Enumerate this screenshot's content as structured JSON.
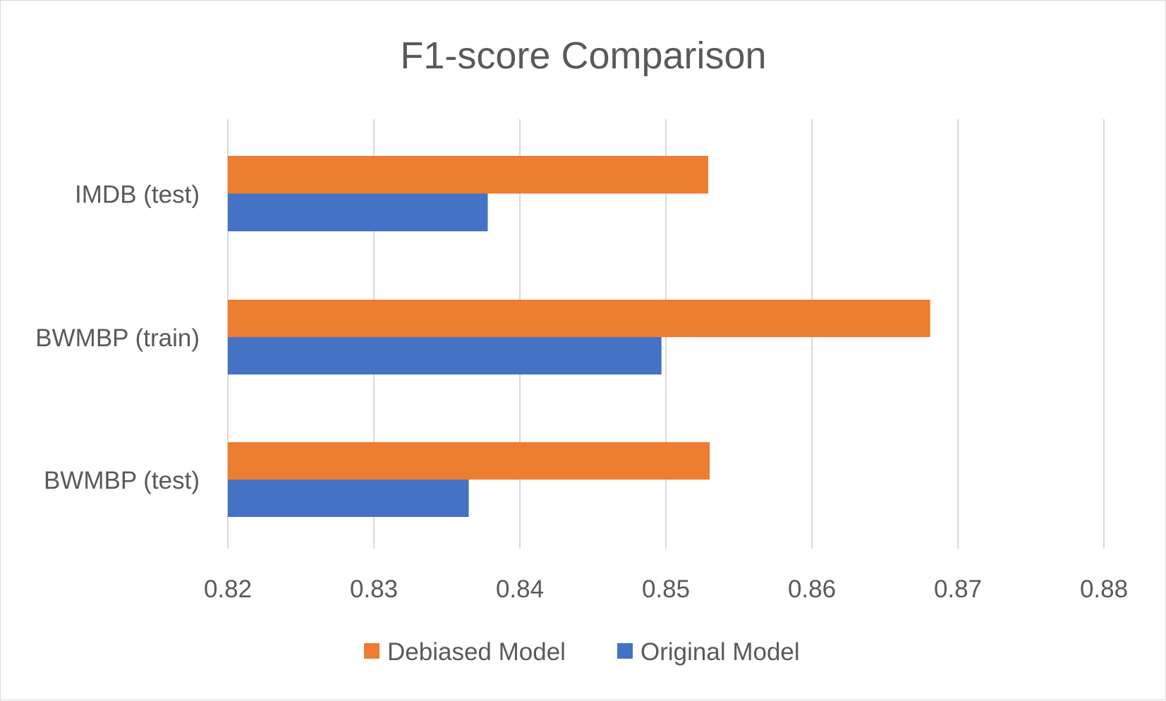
{
  "chart_data": {
    "type": "bar",
    "orientation": "horizontal",
    "title": "F1-score Comparison",
    "xlabel": "",
    "ylabel": "",
    "categories": [
      "IMDB (test)",
      "BWMBP (train)",
      "BWMBP (test)"
    ],
    "series": [
      {
        "name": "Debiased Model",
        "color": "#ED7D31",
        "values": [
          0.8529,
          0.8681,
          0.853
        ]
      },
      {
        "name": "Original Model",
        "color": "#4472C4",
        "values": [
          0.8378,
          0.8497,
          0.8365
        ]
      }
    ],
    "xlim": [
      0.82,
      0.88
    ],
    "xticks": [
      "0.82",
      "0.83",
      "0.84",
      "0.85",
      "0.86",
      "0.87",
      "0.88"
    ],
    "grid": "vertical",
    "legend": "bottom"
  }
}
